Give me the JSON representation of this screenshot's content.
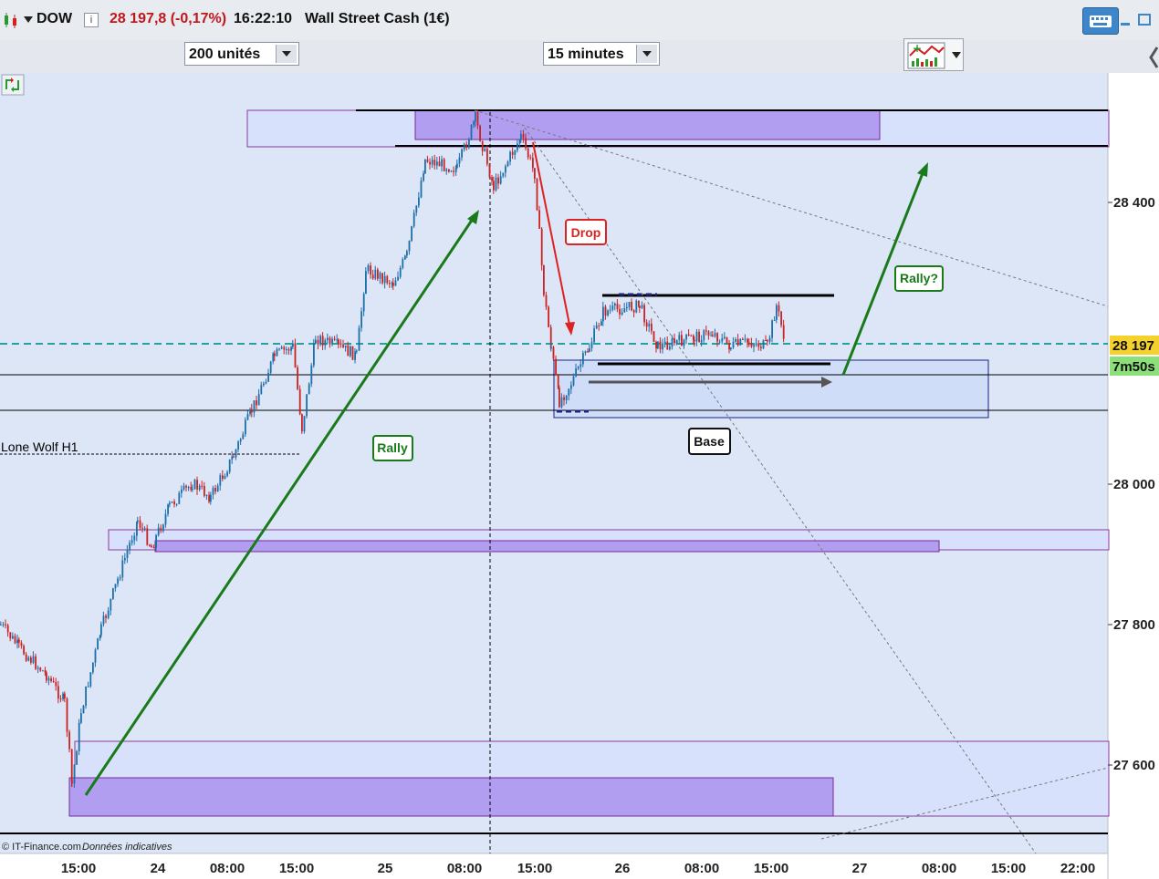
{
  "header": {
    "symbol": "DOW",
    "last": "28 197,8 (-0,17%)",
    "time": "16:22:10",
    "instrument": "Wall Street Cash (1€)",
    "colors": {
      "last": "#c0171b"
    }
  },
  "toolbar": {
    "units": "200 unités",
    "interval": "15 minutes"
  },
  "price_axis": {
    "ticks": [
      "28 400",
      "28 000",
      "27 800",
      "27 600"
    ],
    "current_price": "28 197",
    "countdown": "7m50s",
    "colors": {
      "current_price_bg": "#f5d12e",
      "countdown_bg": "#8ce07a"
    }
  },
  "time_axis": {
    "ticks": [
      "15:00",
      "24",
      "08:00",
      "15:00",
      "25",
      "08:00",
      "15:00",
      "26",
      "08:00",
      "15:00",
      "27",
      "08:00",
      "15:00",
      "22:00"
    ]
  },
  "annotations": {
    "rally": "Rally",
    "drop": "Drop",
    "base": "Base",
    "rally_q": "Rally?",
    "lone_wolf": "Lone Wolf H1"
  },
  "footer": {
    "copyright": "© IT-Finance.com",
    "note": "Données indicatives"
  },
  "chart_data": {
    "type": "candlestick",
    "price_range": [
      27480,
      28580
    ],
    "current_price": 28197.8,
    "y_ticks": [
      28400,
      28000,
      27800,
      27600
    ],
    "colors": {
      "up": "#1d6fa8",
      "down": "#cc2222",
      "background": "#dce6f7",
      "dashed_price": "#23a39b",
      "rally_arrow": "#1a7a1a",
      "drop_arrow": "#dd2222"
    }
  }
}
